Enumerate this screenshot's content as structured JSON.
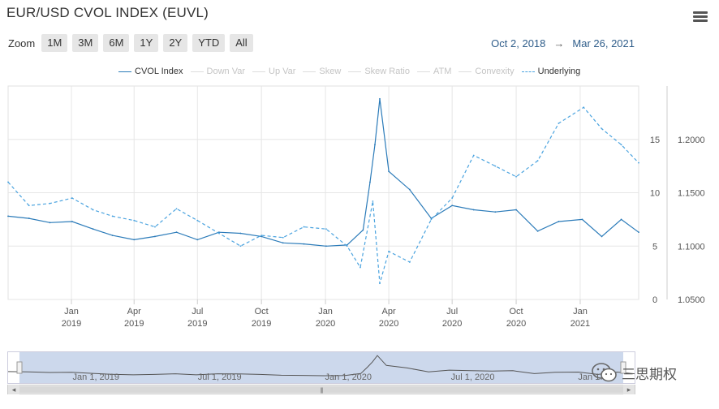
{
  "title": "EUR/USD CVOL INDEX (EUVL)",
  "menu_icon": "hamburger-menu-icon",
  "zoom": {
    "label": "Zoom",
    "buttons": [
      "1M",
      "3M",
      "6M",
      "1Y",
      "2Y",
      "YTD",
      "All"
    ]
  },
  "date_range": {
    "from": "Oct 2, 2018",
    "arrow": "→",
    "to": "Mar 26, 2021"
  },
  "legend": [
    {
      "label": "CVOL Index",
      "state": "on",
      "style": "solid"
    },
    {
      "label": "Down Var",
      "state": "off",
      "style": "solid"
    },
    {
      "label": "Up Var",
      "state": "off",
      "style": "solid"
    },
    {
      "label": "Skew",
      "state": "off",
      "style": "solid"
    },
    {
      "label": "Skew Ratio",
      "state": "off",
      "style": "solid"
    },
    {
      "label": "ATM",
      "state": "off",
      "style": "solid"
    },
    {
      "label": "Convexity",
      "state": "off",
      "style": "solid"
    },
    {
      "label": "Underlying",
      "state": "on",
      "style": "dashed"
    }
  ],
  "navigator": {
    "labels": [
      "Jan 1, 2019",
      "Jul 1, 2019",
      "Jan 1, 2020",
      "Jul 1, 2020",
      "Jan 1..."
    ]
  },
  "watermark": {
    "icon": "wechat-icon",
    "text": "三思期权"
  },
  "colors": {
    "cvol": "#2b7bb9",
    "underlying": "#4aa3df",
    "grid": "#e6e6e6",
    "nav_fill": "#c6d4ea"
  },
  "chart_data": {
    "type": "line",
    "title": "EUR/USD CVOL INDEX (EUVL)",
    "x_ticks": [
      {
        "label": "Jan",
        "year": "2019",
        "date": "2019-01-01"
      },
      {
        "label": "Apr",
        "year": "2019",
        "date": "2019-04-01"
      },
      {
        "label": "Jul",
        "year": "2019",
        "date": "2019-07-01"
      },
      {
        "label": "Oct",
        "year": "2019",
        "date": "2019-10-01"
      },
      {
        "label": "Jan",
        "year": "2020",
        "date": "2020-01-01"
      },
      {
        "label": "Apr",
        "year": "2020",
        "date": "2020-04-01"
      },
      {
        "label": "Jul",
        "year": "2020",
        "date": "2020-07-01"
      },
      {
        "label": "Oct",
        "year": "2020",
        "date": "2020-10-01"
      },
      {
        "label": "Jan",
        "year": "2021",
        "date": "2021-01-01"
      }
    ],
    "xlim": [
      "2018-10-02",
      "2021-03-26"
    ],
    "left_axis": {
      "ticks": [
        "0",
        "5",
        "10",
        "15"
      ],
      "ylim": [
        0,
        20
      ]
    },
    "right_axis": {
      "ticks": [
        "1.0500",
        "1.1000",
        "1.1500",
        "1.2000"
      ],
      "ylim": [
        1.05,
        1.25
      ]
    },
    "grid": true,
    "series": [
      {
        "name": "CVOL Index",
        "axis": "left",
        "style": "solid",
        "x": [
          "2018-10-02",
          "2018-11-01",
          "2018-12-01",
          "2019-01-02",
          "2019-02-01",
          "2019-03-01",
          "2019-04-01",
          "2019-05-01",
          "2019-06-01",
          "2019-07-01",
          "2019-08-01",
          "2019-09-01",
          "2019-10-01",
          "2019-11-01",
          "2019-12-01",
          "2020-01-02",
          "2020-02-01",
          "2020-02-24",
          "2020-03-05",
          "2020-03-12",
          "2020-03-19",
          "2020-04-01",
          "2020-05-01",
          "2020-06-01",
          "2020-07-01",
          "2020-08-01",
          "2020-09-01",
          "2020-10-01",
          "2020-11-01",
          "2020-12-01",
          "2021-01-04",
          "2021-02-01",
          "2021-03-01",
          "2021-03-26"
        ],
        "values": [
          7.8,
          7.6,
          7.2,
          7.3,
          6.6,
          6.0,
          5.6,
          5.9,
          6.3,
          5.6,
          6.3,
          6.2,
          5.9,
          5.3,
          5.2,
          5.0,
          5.1,
          6.5,
          11.0,
          14.5,
          18.8,
          12.0,
          10.3,
          7.6,
          8.8,
          8.4,
          8.2,
          8.4,
          6.4,
          7.3,
          7.5,
          5.9,
          7.5,
          6.3
        ]
      },
      {
        "name": "Underlying",
        "axis": "right",
        "style": "dashed",
        "x": [
          "2018-10-02",
          "2018-11-01",
          "2018-12-01",
          "2019-01-02",
          "2019-02-01",
          "2019-03-01",
          "2019-04-01",
          "2019-05-01",
          "2019-06-01",
          "2019-07-01",
          "2019-08-01",
          "2019-09-01",
          "2019-10-01",
          "2019-11-01",
          "2019-12-01",
          "2020-01-02",
          "2020-02-01",
          "2020-02-20",
          "2020-03-09",
          "2020-03-19",
          "2020-04-01",
          "2020-05-01",
          "2020-06-01",
          "2020-07-01",
          "2020-08-01",
          "2020-09-01",
          "2020-10-01",
          "2020-11-01",
          "2020-12-01",
          "2021-01-06",
          "2021-02-01",
          "2021-03-01",
          "2021-03-26"
        ],
        "values": [
          1.16,
          1.138,
          1.14,
          1.145,
          1.134,
          1.128,
          1.124,
          1.118,
          1.135,
          1.124,
          1.112,
          1.1,
          1.11,
          1.108,
          1.118,
          1.116,
          1.1,
          1.08,
          1.142,
          1.065,
          1.095,
          1.085,
          1.125,
          1.145,
          1.185,
          1.175,
          1.165,
          1.18,
          1.215,
          1.23,
          1.21,
          1.195,
          1.178
        ]
      }
    ]
  }
}
